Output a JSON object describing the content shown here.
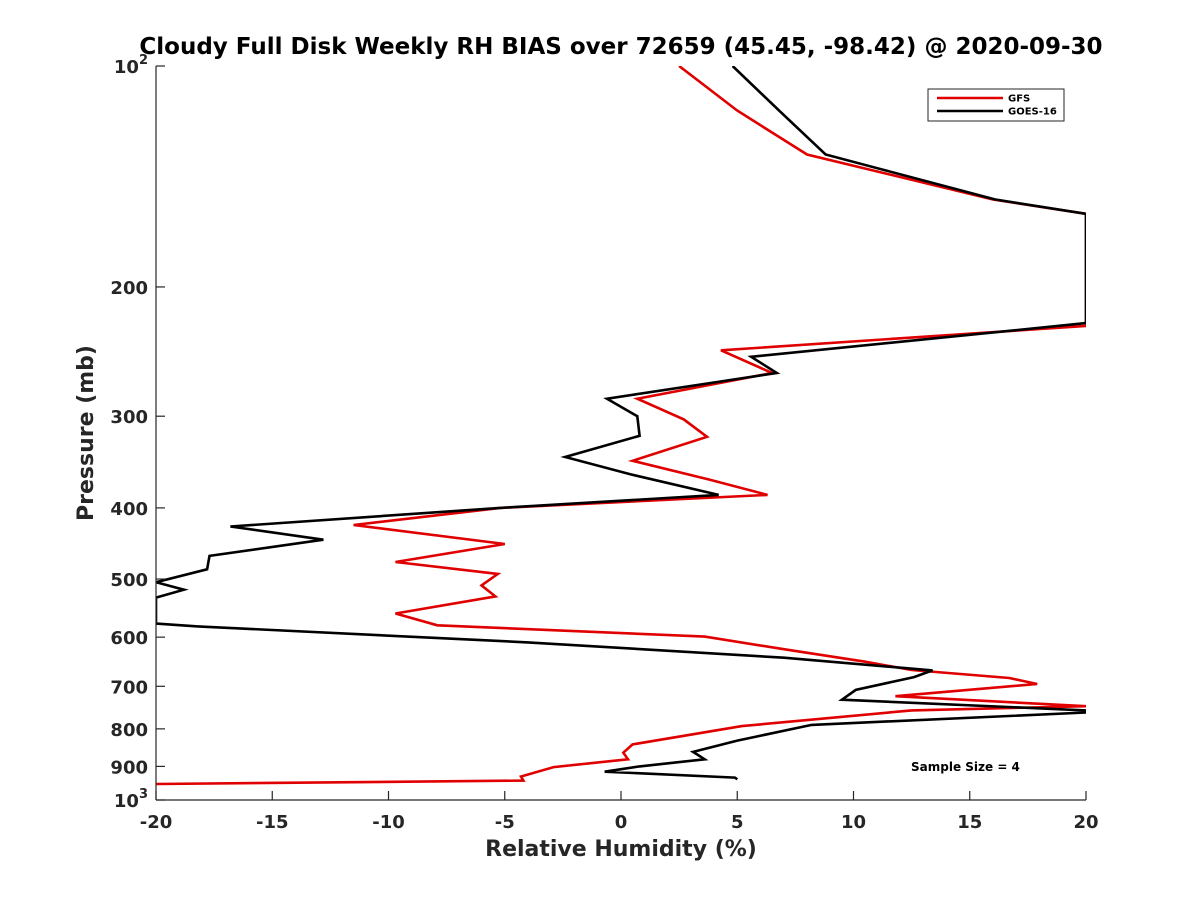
{
  "chart_data": {
    "type": "line",
    "title": "Cloudy Full Disk Weekly RH BIAS over 72659 (45.45, -98.42) @ 2020-09-30",
    "xlabel": "Relative Humidity (%)",
    "ylabel": "Pressure (mb)",
    "xlim": [
      -20,
      20
    ],
    "ylim": [
      100,
      1000
    ],
    "y_scale": "log",
    "y_reversed": true,
    "grid": false,
    "legend_position": "top-right",
    "x_ticks": [
      {
        "value": -20,
        "label": "-20"
      },
      {
        "value": -15,
        "label": "-15"
      },
      {
        "value": -10,
        "label": "-10"
      },
      {
        "value": -5,
        "label": "-5"
      },
      {
        "value": 0,
        "label": "0"
      },
      {
        "value": 5,
        "label": "5"
      },
      {
        "value": 10,
        "label": "10"
      },
      {
        "value": 15,
        "label": "15"
      },
      {
        "value": 20,
        "label": "20"
      }
    ],
    "y_ticks": [
      {
        "value": 100,
        "base": "10",
        "exp": "2"
      },
      {
        "value": 200,
        "label": "200"
      },
      {
        "value": 300,
        "label": "300"
      },
      {
        "value": 400,
        "label": "400"
      },
      {
        "value": 500,
        "label": "500"
      },
      {
        "value": 600,
        "label": "600"
      },
      {
        "value": 700,
        "label": "700"
      },
      {
        "value": 800,
        "label": "800"
      },
      {
        "value": 900,
        "label": "900"
      },
      {
        "value": 1000,
        "base": "10",
        "exp": "3"
      }
    ],
    "series": [
      {
        "name": "GFS",
        "color": "#e00000",
        "points": [
          [
            2.5,
            100
          ],
          [
            5,
            115
          ],
          [
            8,
            132
          ],
          [
            16,
            152
          ],
          [
            20,
            159
          ],
          [
            20,
            226
          ],
          [
            4.3,
            244
          ],
          [
            6.5,
            262
          ],
          [
            0.7,
            284
          ],
          [
            2.7,
            303
          ],
          [
            3.7,
            320
          ],
          [
            0.5,
            345
          ],
          [
            3.8,
            366
          ],
          [
            6.3,
            384
          ],
          [
            -5.2,
            400
          ],
          [
            -11.5,
            422
          ],
          [
            -5,
            448
          ],
          [
            -9.7,
            474
          ],
          [
            -5.3,
            492
          ],
          [
            -6,
            510
          ],
          [
            -5.4,
            528
          ],
          [
            -9.7,
            557
          ],
          [
            -7.9,
            578
          ],
          [
            3.6,
            599
          ],
          [
            7,
            623
          ],
          [
            10.5,
            648
          ],
          [
            12.5,
            665
          ],
          [
            16.7,
            682
          ],
          [
            17.9,
            695
          ],
          [
            11.8,
            722
          ],
          [
            20,
            745
          ],
          [
            12.5,
            755
          ],
          [
            5.2,
            793
          ],
          [
            0.5,
            840
          ],
          [
            0.1,
            862
          ],
          [
            0.3,
            880
          ],
          [
            -2.9,
            902
          ],
          [
            -4.3,
            929
          ],
          [
            -4.2,
            941
          ],
          [
            -20,
            951
          ]
        ]
      },
      {
        "name": "GOES-16",
        "color": "#000000",
        "points": [
          [
            4.8,
            100
          ],
          [
            6.8,
            115
          ],
          [
            8.8,
            132
          ],
          [
            16.1,
            152
          ],
          [
            20,
            159
          ],
          [
            20,
            224
          ],
          [
            5.6,
            249
          ],
          [
            6.7,
            262
          ],
          [
            -0.6,
            284
          ],
          [
            0.7,
            300
          ],
          [
            0.8,
            319
          ],
          [
            -2.4,
            341
          ],
          [
            0.4,
            360
          ],
          [
            4.2,
            384
          ],
          [
            -5.2,
            400
          ],
          [
            -16.8,
            424
          ],
          [
            -12.8,
            442
          ],
          [
            -17.7,
            465
          ],
          [
            -17.8,
            485
          ],
          [
            -20,
            505
          ],
          [
            -18.8,
            517
          ],
          [
            -20,
            530
          ],
          [
            -20,
            575
          ],
          [
            -18.2,
            580
          ],
          [
            -4,
            610
          ],
          [
            7,
            640
          ],
          [
            13.4,
            666
          ],
          [
            12.6,
            680
          ],
          [
            10.1,
            708
          ],
          [
            9.5,
            730
          ],
          [
            20,
            755
          ],
          [
            20,
            760
          ],
          [
            8.2,
            790
          ],
          [
            5,
            830
          ],
          [
            3.1,
            860
          ],
          [
            3.6,
            880
          ],
          [
            0.8,
            900
          ],
          [
            -0.7,
            915
          ],
          [
            4.9,
            932
          ],
          [
            5,
            937
          ]
        ]
      }
    ],
    "annotation": "Sample Size = 4"
  }
}
